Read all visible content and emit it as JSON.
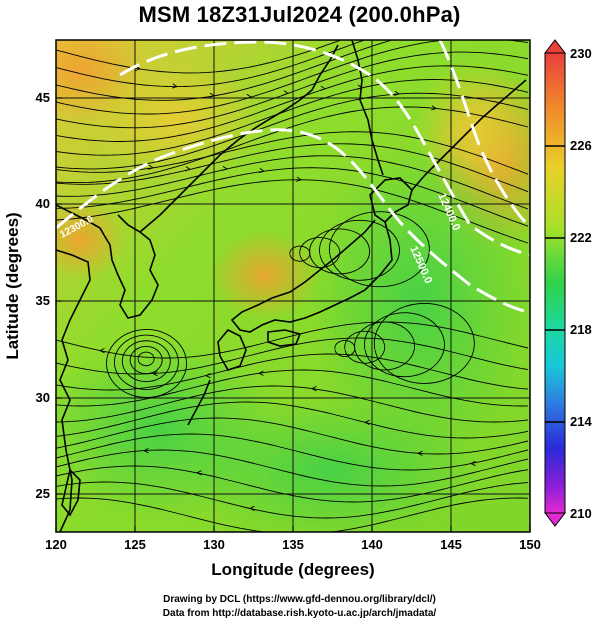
{
  "title": "MSM 18Z31Jul2024 (200.0hPa)",
  "axes": {
    "xlabel": "Longitude (degrees)",
    "ylabel": "Latitude  (degrees)",
    "x_ticks": [
      "120",
      "125",
      "130",
      "135",
      "140",
      "145",
      "150"
    ],
    "y_ticks": [
      "25",
      "30",
      "35",
      "40",
      "45"
    ]
  },
  "colorbar": {
    "labels": [
      "230",
      "226",
      "222",
      "218",
      "214",
      "210"
    ],
    "colors": [
      "#e8403c",
      "#f08a2c",
      "#e9c02a",
      "#c8e02c",
      "#8ce02a",
      "#2fd24a",
      "#1ed7a0",
      "#18c8d8",
      "#2f7de0",
      "#2a2ad8",
      "#8a1fd6",
      "#e22ad0"
    ]
  },
  "contours": [
    {
      "label": "12500.0"
    },
    {
      "label": "12400.0"
    },
    {
      "label": "12300.0"
    }
  ],
  "credits": {
    "line1": "Drawing by DCL (https://www.gfd-dennou.org/library/dcl/)",
    "line2": "Data from http://database.rish.kyoto-u.ac.jp/arch/jmadata/"
  },
  "chart_data": {
    "type": "heatmap",
    "title": "MSM 18Z31Jul2024 (200.0hPa)",
    "xlabel": "Longitude (degrees)",
    "ylabel": "Latitude  (degrees)",
    "xlim": [
      120,
      150
    ],
    "ylim": [
      22.4,
      47.6
    ],
    "color_range": [
      210,
      230
    ],
    "colorbar_ticks": [
      230,
      226,
      222,
      218,
      214,
      210
    ],
    "contour_levels": [
      12300,
      12400,
      12500
    ],
    "grid": true
  }
}
